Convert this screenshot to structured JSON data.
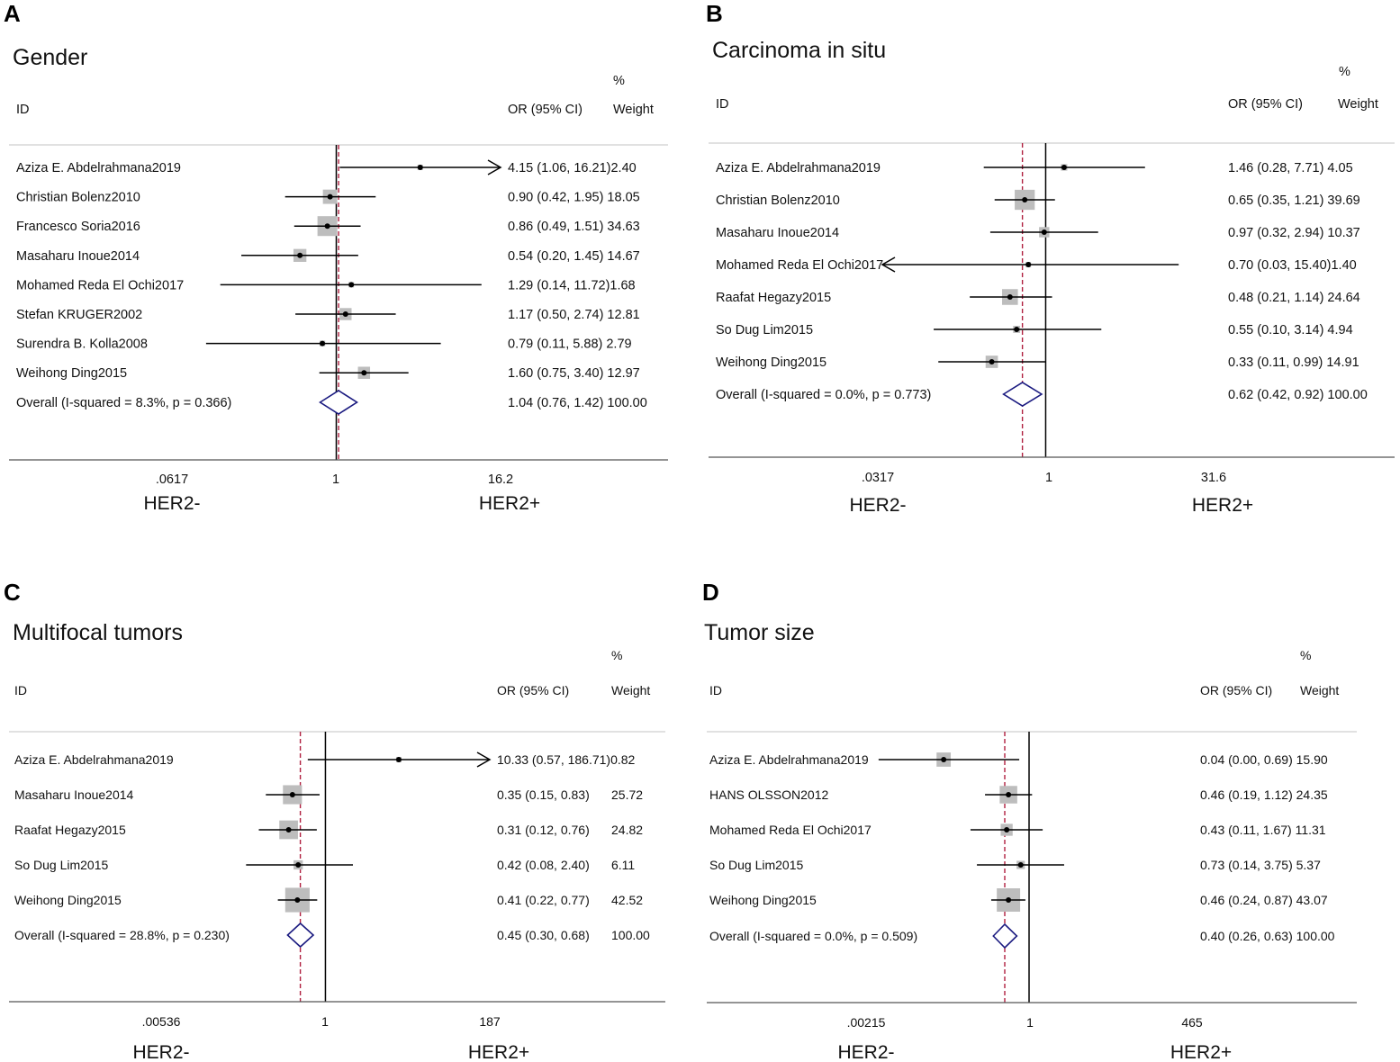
{
  "figure": {
    "header_id": "ID",
    "header_or": "OR (95% CI)",
    "header_pct": "%",
    "header_weight": "Weight",
    "left_label": "HER2-",
    "right_label": "HER2+",
    "colors": {
      "marker": "#bdbdbd",
      "diamond": "#1a1a80",
      "ref_line": "#b02040",
      "line": "#000000"
    }
  },
  "chart_data": [
    {
      "type": "forest",
      "panel": "A",
      "title": "Gender",
      "scale": "log",
      "xlim": [
        0.0617,
        16.2
      ],
      "xticks": [
        ".0617",
        "1",
        "16.2"
      ],
      "overall_value": 1.04,
      "studies": [
        {
          "id": "Aziza E. Abdelrahmana2019",
          "or": 4.15,
          "lo": 1.06,
          "hi": 16.21,
          "weight": 2.4,
          "text": "4.15 (1.06, 16.21)2.40",
          "arrow_right": true
        },
        {
          "id": "Christian Bolenz2010",
          "or": 0.9,
          "lo": 0.42,
          "hi": 1.95,
          "weight": 18.05,
          "text": "0.90 (0.42, 1.95) 18.05"
        },
        {
          "id": "Francesco Soria2016",
          "or": 0.86,
          "lo": 0.49,
          "hi": 1.51,
          "weight": 34.63,
          "text": "0.86 (0.49, 1.51) 34.63"
        },
        {
          "id": "Masaharu Inoue2014",
          "or": 0.54,
          "lo": 0.2,
          "hi": 1.45,
          "weight": 14.67,
          "text": "0.54 (0.20, 1.45) 14.67"
        },
        {
          "id": "Mohamed Reda El Ochi2017",
          "or": 1.29,
          "lo": 0.14,
          "hi": 11.72,
          "weight": 1.68,
          "text": "1.29 (0.14, 11.72)1.68"
        },
        {
          "id": "Stefan KRUGER2002",
          "or": 1.17,
          "lo": 0.5,
          "hi": 2.74,
          "weight": 12.81,
          "text": "1.17 (0.50, 2.74) 12.81"
        },
        {
          "id": "Surendra B. Kolla2008",
          "or": 0.79,
          "lo": 0.11,
          "hi": 5.88,
          "weight": 2.79,
          "text": "0.79 (0.11, 5.88) 2.79"
        },
        {
          "id": "Weihong Ding2015",
          "or": 1.6,
          "lo": 0.75,
          "hi": 3.4,
          "weight": 12.97,
          "text": "1.60 (0.75, 3.40) 12.97"
        }
      ],
      "overall": {
        "id": "Overall  (I-squared = 8.3%, p = 0.366)",
        "or": 1.04,
        "lo": 0.76,
        "hi": 1.42,
        "text": "1.04 (0.76, 1.42) 100.00"
      }
    },
    {
      "type": "forest",
      "panel": "B",
      "title": "Carcinoma in situ",
      "scale": "log",
      "xlim": [
        0.0317,
        31.6
      ],
      "xticks": [
        ".0317",
        "1",
        "31.6"
      ],
      "overall_value": 0.62,
      "studies": [
        {
          "id": "Aziza E. Abdelrahmana2019",
          "or": 1.46,
          "lo": 0.28,
          "hi": 7.71,
          "weight": 4.05,
          "text": "1.46 (0.28, 7.71) 4.05"
        },
        {
          "id": "Christian Bolenz2010",
          "or": 0.65,
          "lo": 0.35,
          "hi": 1.21,
          "weight": 39.69,
          "text": "0.65 (0.35, 1.21) 39.69"
        },
        {
          "id": "Masaharu Inoue2014",
          "or": 0.97,
          "lo": 0.32,
          "hi": 2.94,
          "weight": 10.37,
          "text": "0.97 (0.32, 2.94) 10.37"
        },
        {
          "id": "Mohamed Reda El Ochi2017",
          "or": 0.7,
          "lo": 0.03,
          "hi": 15.4,
          "weight": 1.4,
          "text": "0.70 (0.03, 15.40)1.40",
          "arrow_left": true
        },
        {
          "id": "Raafat Hegazy2015",
          "or": 0.48,
          "lo": 0.21,
          "hi": 1.14,
          "weight": 24.64,
          "text": "0.48 (0.21, 1.14) 24.64"
        },
        {
          "id": "So Dug Lim2015",
          "or": 0.55,
          "lo": 0.1,
          "hi": 3.14,
          "weight": 4.94,
          "text": "0.55 (0.10, 3.14) 4.94"
        },
        {
          "id": "Weihong Ding2015",
          "or": 0.33,
          "lo": 0.11,
          "hi": 0.99,
          "weight": 14.91,
          "text": "0.33 (0.11, 0.99) 14.91"
        }
      ],
      "overall": {
        "id": "Overall  (I-squared = 0.0%, p = 0.773)",
        "or": 0.62,
        "lo": 0.42,
        "hi": 0.92,
        "text": "0.62 (0.42, 0.92) 100.00"
      }
    },
    {
      "type": "forest",
      "panel": "C",
      "title": "Multifocal tumors",
      "scale": "log",
      "xlim": [
        0.00536,
        187
      ],
      "xticks": [
        ".00536",
        "1",
        "187"
      ],
      "overall_value": 0.45,
      "studies": [
        {
          "id": "Aziza E. Abdelrahmana2019",
          "or": 10.33,
          "lo": 0.57,
          "hi": 186.71,
          "weight": 0.82,
          "text": "10.33 (0.57, 186.71)0.82",
          "arrow_right": true
        },
        {
          "id": "Masaharu Inoue2014",
          "or": 0.35,
          "lo": 0.15,
          "hi": 0.83,
          "weight": 25.72,
          "text": "0.35 (0.15, 0.83)",
          "wtext": "25.72"
        },
        {
          "id": "Raafat Hegazy2015",
          "or": 0.31,
          "lo": 0.12,
          "hi": 0.76,
          "weight": 24.82,
          "text": "0.31 (0.12, 0.76)",
          "wtext": "24.82"
        },
        {
          "id": "So Dug Lim2015",
          "or": 0.42,
          "lo": 0.08,
          "hi": 2.4,
          "weight": 6.11,
          "text": "0.42 (0.08, 2.40)",
          "wtext": "6.11"
        },
        {
          "id": "Weihong Ding2015",
          "or": 0.41,
          "lo": 0.22,
          "hi": 0.77,
          "weight": 42.52,
          "text": "0.41 (0.22, 0.77)",
          "wtext": "42.52"
        }
      ],
      "overall": {
        "id": "Overall  (I-squared = 28.8%, p = 0.230)",
        "or": 0.45,
        "lo": 0.3,
        "hi": 0.68,
        "text": "0.45 (0.30, 0.68)",
        "wtext": "100.00"
      }
    },
    {
      "type": "forest",
      "panel": "D",
      "title": "Tumor size",
      "scale": "log",
      "xlim": [
        0.00215,
        465
      ],
      "xticks": [
        ".00215",
        "1",
        "465"
      ],
      "overall_value": 0.4,
      "studies": [
        {
          "id": "Aziza E. Abdelrahmana2019",
          "or": 0.04,
          "lo": 0.0,
          "hi": 0.69,
          "weight": 15.9,
          "text": "0.04 (0.00, 0.69) 15.90"
        },
        {
          "id": "HANS OLSSON2012",
          "or": 0.46,
          "lo": 0.19,
          "hi": 1.12,
          "weight": 24.35,
          "text": "0.46 (0.19, 1.12) 24.35"
        },
        {
          "id": "Mohamed Reda El Ochi2017",
          "or": 0.43,
          "lo": 0.11,
          "hi": 1.67,
          "weight": 11.31,
          "text": "0.43 (0.11, 1.67) 11.31"
        },
        {
          "id": "So Dug Lim2015",
          "or": 0.73,
          "lo": 0.14,
          "hi": 3.75,
          "weight": 5.37,
          "text": "0.73 (0.14, 3.75) 5.37"
        },
        {
          "id": "Weihong Ding2015",
          "or": 0.46,
          "lo": 0.24,
          "hi": 0.87,
          "weight": 43.07,
          "text": "0.46 (0.24, 0.87) 43.07"
        }
      ],
      "overall": {
        "id": "Overall  (I-squared = 0.0%, p = 0.509)",
        "or": 0.4,
        "lo": 0.26,
        "hi": 0.63,
        "text": "0.40 (0.26, 0.63) 100.00"
      }
    }
  ]
}
